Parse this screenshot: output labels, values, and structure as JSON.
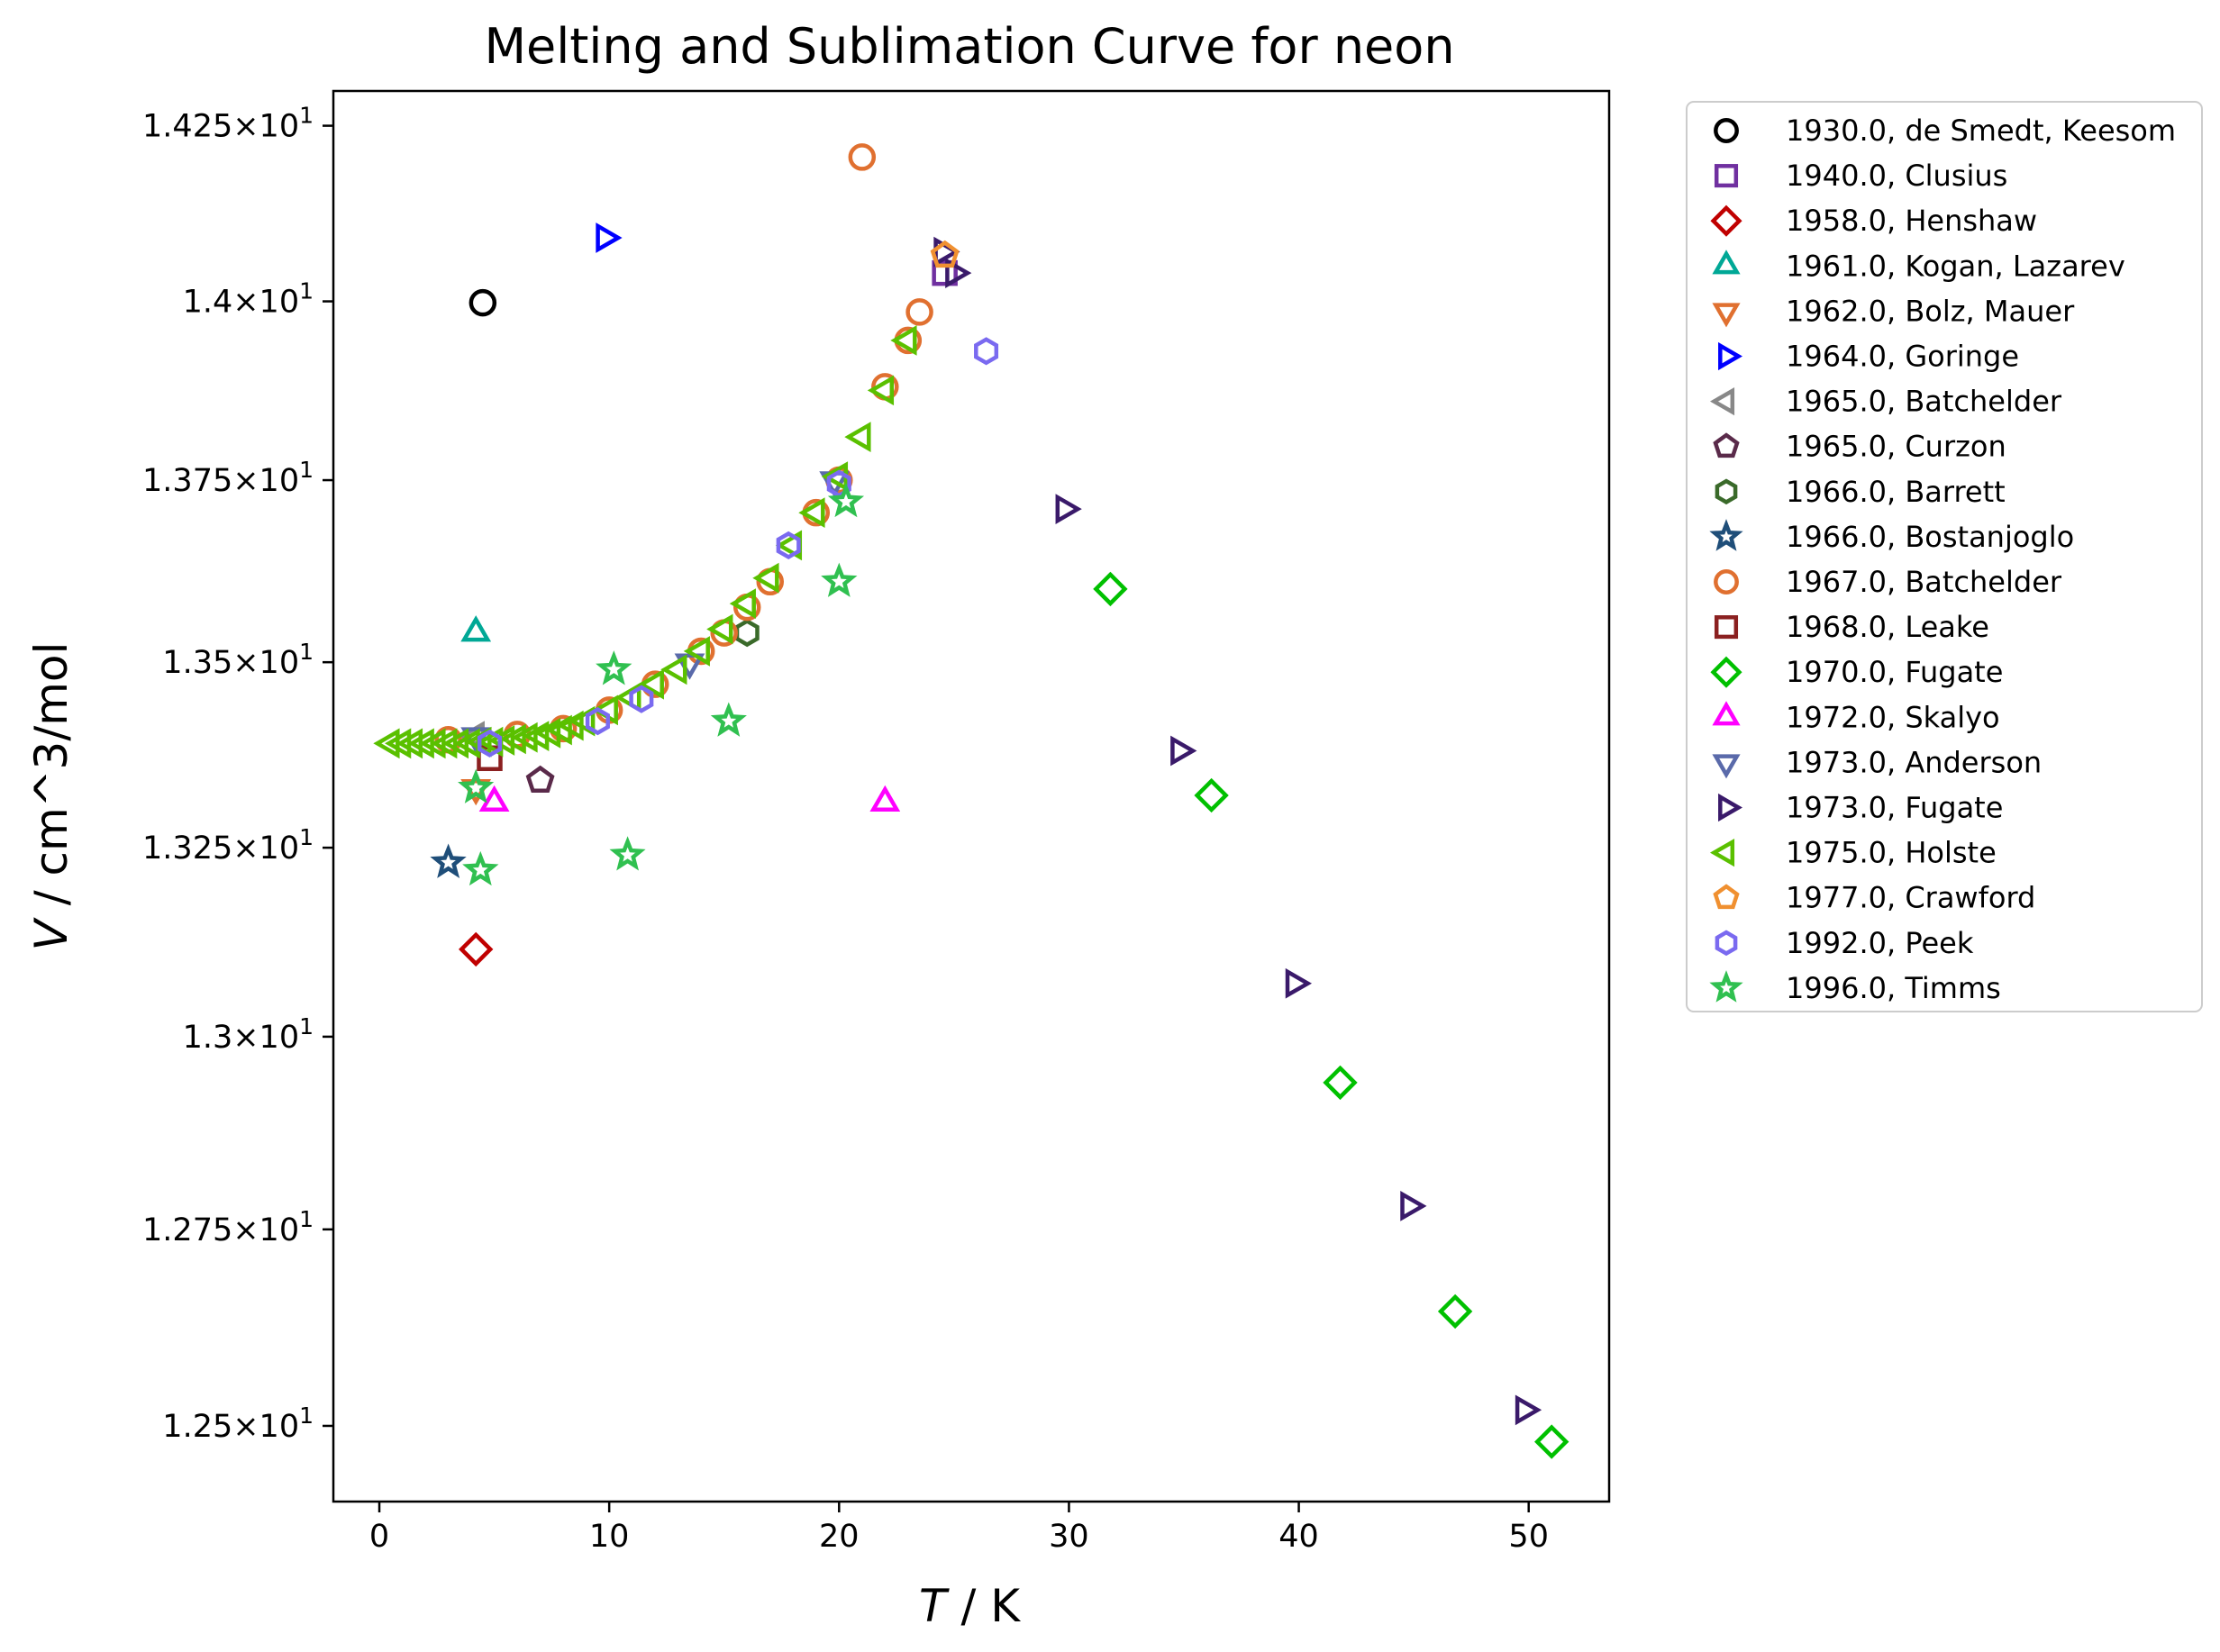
{
  "chart_data": {
    "type": "scatter",
    "title": "Melting and Sublimation Curve for neon",
    "xlabel_italic": "T",
    "xlabel_rest": " / K",
    "ylabel_italic": "V",
    "ylabel_rest": " / cm^3/mol",
    "xlim": [
      -2,
      53.5
    ],
    "ylim": [
      12.405,
      14.3
    ],
    "y_scale": "log",
    "x_ticks": [
      0,
      10,
      20,
      30,
      40,
      50
    ],
    "x_tick_labels": [
      "0",
      "10",
      "20",
      "30",
      "40",
      "50"
    ],
    "y_ticks": [
      12.5,
      12.75,
      13.0,
      13.25,
      13.5,
      13.75,
      14.0,
      14.25
    ],
    "y_tick_labels": [
      {
        "mant": "1.25",
        "exp": "1"
      },
      {
        "mant": "1.275",
        "exp": "1"
      },
      {
        "mant": "1.3",
        "exp": "1"
      },
      {
        "mant": "1.325",
        "exp": "1"
      },
      {
        "mant": "1.35",
        "exp": "1"
      },
      {
        "mant": "1.375",
        "exp": "1"
      },
      {
        "mant": "1.4",
        "exp": "1"
      },
      {
        "mant": "1.425",
        "exp": "1"
      }
    ],
    "grid": false,
    "legend_position": "outside-right",
    "series": [
      {
        "name": "1930.0, de Smedt, Keesom",
        "marker": "circle",
        "color": "#000000",
        "points": [
          [
            4.5,
            13.998
          ]
        ]
      },
      {
        "name": "1940.0, Clusius",
        "marker": "square",
        "color": "#7030a0",
        "points": [
          [
            24.6,
            14.04
          ]
        ]
      },
      {
        "name": "1958.0, Henshaw",
        "marker": "diamond",
        "color": "#c00000",
        "points": [
          [
            4.2,
            13.115
          ]
        ]
      },
      {
        "name": "1961.0, Kogan, Lazarev",
        "marker": "triangle-up",
        "color": "#00a896",
        "points": [
          [
            4.2,
            13.54
          ]
        ]
      },
      {
        "name": "1962.0, Bolz, Mauer",
        "marker": "triangle-down",
        "color": "#e07030",
        "points": [
          [
            4.2,
            13.33
          ]
        ]
      },
      {
        "name": "1964.0, Goringe",
        "marker": "triangle-right",
        "color": "#0000ff",
        "points": [
          [
            9.8,
            14.09
          ]
        ]
      },
      {
        "name": "1965.0, Batchelder",
        "marker": "triangle-left",
        "color": "#888888",
        "points": [
          [
            4.2,
            13.4
          ]
        ]
      },
      {
        "name": "1965.0, Curzon",
        "marker": "pentagon",
        "color": "#5a2a4a",
        "points": [
          [
            7.0,
            13.34
          ]
        ]
      },
      {
        "name": "1966.0, Barrett",
        "marker": "hexagon",
        "color": "#3a6a2a",
        "points": [
          [
            16.0,
            13.54
          ]
        ]
      },
      {
        "name": "1966.0, Bostanjoglo",
        "marker": "star",
        "color": "#1f4e79",
        "points": [
          [
            3.0,
            13.23
          ]
        ]
      },
      {
        "name": "1967.0, Batchelder",
        "marker": "circle",
        "color": "#e07030",
        "points": [
          [
            3.0,
            13.395
          ],
          [
            6.0,
            13.402
          ],
          [
            8.0,
            13.41
          ],
          [
            10.0,
            13.435
          ],
          [
            12.0,
            13.47
          ],
          [
            14.0,
            13.515
          ],
          [
            15.0,
            13.54
          ],
          [
            16.0,
            13.575
          ],
          [
            17.0,
            13.61
          ],
          [
            19.0,
            13.705
          ],
          [
            20.0,
            13.75
          ],
          [
            22.0,
            13.88
          ],
          [
            23.0,
            13.945
          ],
          [
            23.5,
            13.985
          ],
          [
            21.0,
            14.205
          ]
        ]
      },
      {
        "name": "1968.0, Leake",
        "marker": "square",
        "color": "#8b2020",
        "points": [
          [
            4.8,
            13.37
          ]
        ]
      },
      {
        "name": "1970.0, Fugate",
        "marker": "diamond",
        "color": "#00c000",
        "points": [
          [
            31.8,
            13.6
          ],
          [
            36.2,
            13.32
          ],
          [
            41.8,
            12.94
          ],
          [
            46.8,
            12.645
          ],
          [
            51.0,
            12.48
          ]
        ]
      },
      {
        "name": "1972.0, Skalyo",
        "marker": "triangle-up",
        "color": "#ff00ff",
        "points": [
          [
            5.0,
            13.31
          ],
          [
            22.0,
            13.31
          ]
        ]
      },
      {
        "name": "1973.0, Anderson",
        "marker": "triangle-down",
        "color": "#5a6aaa",
        "points": [
          [
            4.2,
            13.4
          ],
          [
            13.5,
            13.5
          ],
          [
            19.8,
            13.75
          ]
        ]
      },
      {
        "name": "1973.0, Fugate",
        "marker": "triangle-right",
        "color": "#3a1a6a",
        "points": [
          [
            24.5,
            14.07
          ],
          [
            25.0,
            14.04
          ],
          [
            29.8,
            13.71
          ],
          [
            34.8,
            13.38
          ],
          [
            39.8,
            13.07
          ],
          [
            44.8,
            12.78
          ],
          [
            49.8,
            12.52
          ]
        ]
      },
      {
        "name": "1975.0, Holste",
        "marker": "triangle-left",
        "color": "#5ac000",
        "points": [
          [
            0.5,
            13.39
          ],
          [
            1.0,
            13.39
          ],
          [
            1.5,
            13.39
          ],
          [
            2.0,
            13.39
          ],
          [
            2.5,
            13.39
          ],
          [
            3.0,
            13.39
          ],
          [
            3.5,
            13.39
          ],
          [
            4.0,
            13.39
          ],
          [
            4.5,
            13.392
          ],
          [
            5.0,
            13.392
          ],
          [
            5.5,
            13.394
          ],
          [
            6.0,
            13.396
          ],
          [
            6.5,
            13.398
          ],
          [
            7.0,
            13.4
          ],
          [
            7.5,
            13.404
          ],
          [
            8.0,
            13.408
          ],
          [
            8.5,
            13.414
          ],
          [
            9.0,
            13.42
          ],
          [
            10.0,
            13.435
          ],
          [
            11.0,
            13.452
          ],
          [
            12.0,
            13.47
          ],
          [
            13.0,
            13.49
          ],
          [
            14.0,
            13.515
          ],
          [
            15.0,
            13.545
          ],
          [
            16.0,
            13.58
          ],
          [
            17.0,
            13.615
          ],
          [
            18.0,
            13.66
          ],
          [
            19.0,
            13.705
          ],
          [
            20.0,
            13.755
          ],
          [
            21.0,
            13.81
          ],
          [
            22.0,
            13.875
          ],
          [
            23.0,
            13.945
          ]
        ]
      },
      {
        "name": "1977.0, Crawford",
        "marker": "pentagon",
        "color": "#f09030",
        "points": [
          [
            24.6,
            14.065
          ]
        ]
      },
      {
        "name": "1992.0, Peek",
        "marker": "hexagon",
        "color": "#7a6af0",
        "points": [
          [
            4.8,
            13.39
          ],
          [
            9.5,
            13.42
          ],
          [
            11.4,
            13.45
          ],
          [
            17.8,
            13.66
          ],
          [
            20.0,
            13.745
          ],
          [
            26.4,
            13.93
          ]
        ]
      },
      {
        "name": "1996.0, Timms",
        "marker": "star",
        "color": "#30c050",
        "points": [
          [
            4.2,
            13.33
          ],
          [
            4.4,
            13.22
          ],
          [
            10.2,
            13.49
          ],
          [
            10.8,
            13.24
          ],
          [
            15.2,
            13.42
          ],
          [
            20.0,
            13.61
          ],
          [
            20.3,
            13.72
          ]
        ]
      }
    ]
  }
}
